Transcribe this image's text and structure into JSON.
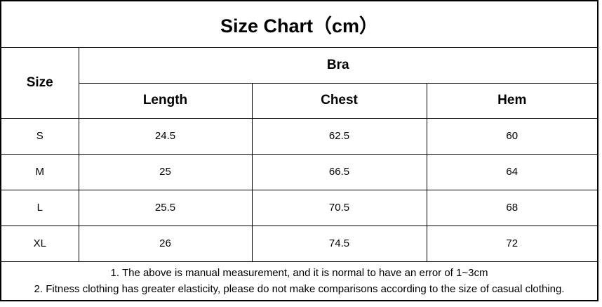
{
  "title": "Size Chart（cm）",
  "table": {
    "corner_header": "Size",
    "group_header": "Bra",
    "columns": [
      "Length",
      "Chest",
      "Hem"
    ],
    "rows": [
      {
        "size": "S",
        "length": "24.5",
        "chest": "62.5",
        "hem": "60"
      },
      {
        "size": "M",
        "length": "25",
        "chest": "66.5",
        "hem": "64"
      },
      {
        "size": "L",
        "length": "25.5",
        "chest": "70.5",
        "hem": "68"
      },
      {
        "size": "XL",
        "length": "26",
        "chest": "74.5",
        "hem": "72"
      }
    ]
  },
  "notes": [
    "1. The above is manual measurement, and it is normal to have an error of 1~3cm",
    "2. Fitness clothing has greater elasticity, please do not make comparisons according to the size of casual clothing."
  ],
  "chart_data": {
    "type": "table",
    "title": "Size Chart（cm）",
    "group": "Bra",
    "categories": [
      "S",
      "M",
      "L",
      "XL"
    ],
    "series": [
      {
        "name": "Length",
        "values": [
          24.5,
          25,
          25.5,
          26
        ]
      },
      {
        "name": "Chest",
        "values": [
          62.5,
          66.5,
          70.5,
          74.5
        ]
      },
      {
        "name": "Hem",
        "values": [
          60,
          64,
          68,
          72
        ]
      }
    ]
  },
  "colors": {
    "background": "#ffffff",
    "border": "#000000",
    "text": "#000000"
  }
}
